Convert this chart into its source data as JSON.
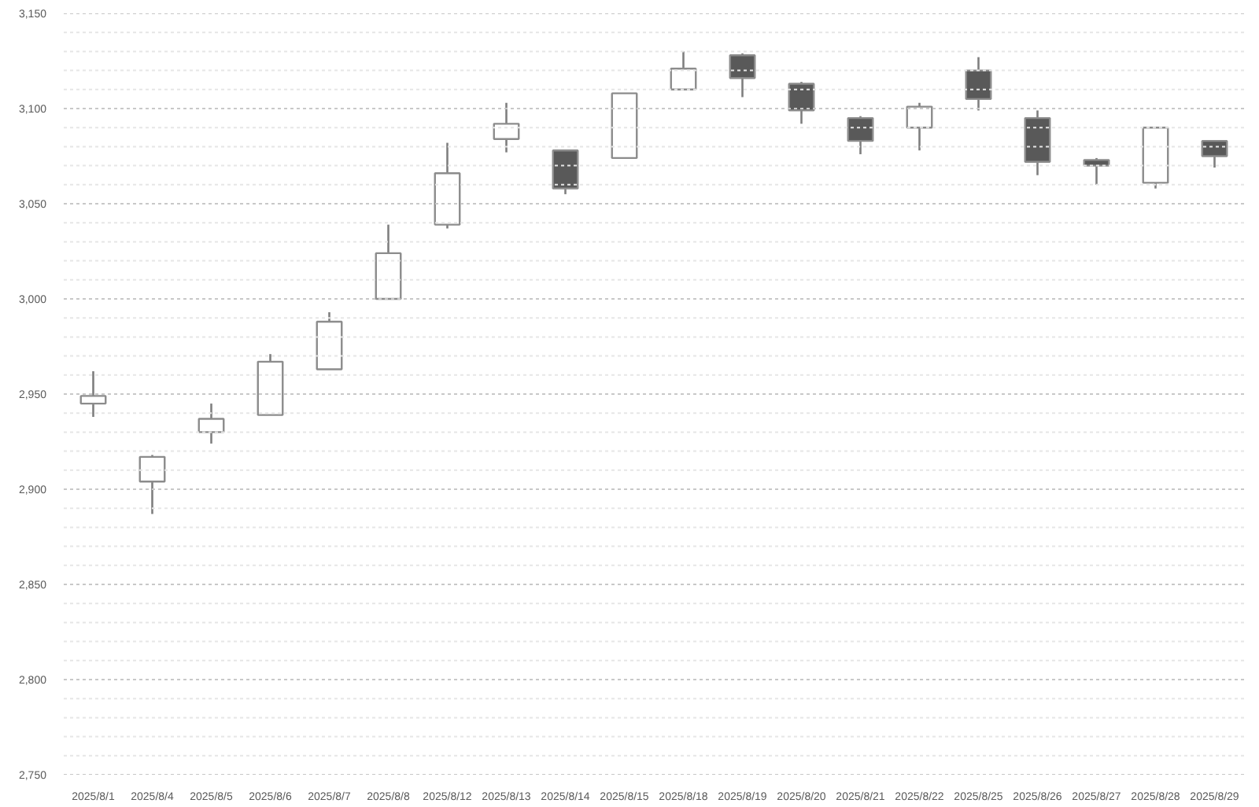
{
  "chart_data": {
    "type": "candlestick",
    "categories": [
      "2025/8/1",
      "2025/8/4",
      "2025/8/5",
      "2025/8/6",
      "2025/8/7",
      "2025/8/8",
      "2025/8/12",
      "2025/8/13",
      "2025/8/14",
      "2025/8/15",
      "2025/8/18",
      "2025/8/19",
      "2025/8/20",
      "2025/8/21",
      "2025/8/22",
      "2025/8/25",
      "2025/8/26",
      "2025/8/27",
      "2025/8/28",
      "2025/8/29"
    ],
    "ohlc": [
      [
        2945,
        2962,
        2938,
        2949
      ],
      [
        2904,
        2918,
        2887,
        2917
      ],
      [
        2930,
        2945,
        2924,
        2937
      ],
      [
        2939,
        2971,
        2939,
        2967
      ],
      [
        2963,
        2993,
        2963,
        2988
      ],
      [
        3000,
        3039,
        3000,
        3024
      ],
      [
        3039,
        3082,
        3037,
        3066
      ],
      [
        3084,
        3103,
        3077,
        3092
      ],
      [
        3078,
        3078,
        3055,
        3058
      ],
      [
        3074,
        3108,
        3074,
        3108
      ],
      [
        3110,
        3130,
        3110,
        3121
      ],
      [
        3128,
        3129,
        3106,
        3116
      ],
      [
        3113,
        3114,
        3092,
        3099
      ],
      [
        3095,
        3096,
        3076,
        3083
      ],
      [
        3090,
        3103,
        3078,
        3101
      ],
      [
        3120,
        3127,
        3099,
        3105
      ],
      [
        3095,
        3099,
        3065,
        3072
      ],
      [
        3073,
        3074,
        3060,
        3070
      ],
      [
        3061,
        3090,
        3058,
        3090
      ],
      [
        3083,
        3083,
        3069,
        3075
      ]
    ],
    "colors": [
      "#ffffff",
      "#ffffff",
      "#ffffff",
      "#ffffff",
      "#ffffff",
      "#ffffff",
      "#ffffff",
      "#ffffff",
      "#595959",
      "#ffffff",
      "#ffffff",
      "#595959",
      "#595959",
      "#595959",
      "#ffffff",
      "#595959",
      "#595959",
      "#595959",
      "#ffffff",
      "#595959"
    ],
    "ylim": [
      2750,
      3150
    ],
    "yticks": [
      {
        "value": 2750,
        "label": "2,750"
      },
      {
        "value": 2760,
        "label": null
      },
      {
        "value": 2770,
        "label": null
      },
      {
        "value": 2780,
        "label": null
      },
      {
        "value": 2790,
        "label": null
      },
      {
        "value": 2800,
        "label": "2,800"
      },
      {
        "value": 2810,
        "label": null
      },
      {
        "value": 2820,
        "label": null
      },
      {
        "value": 2830,
        "label": null
      },
      {
        "value": 2840,
        "label": null
      },
      {
        "value": 2850,
        "label": "2,850"
      },
      {
        "value": 2860,
        "label": null
      },
      {
        "value": 2870,
        "label": null
      },
      {
        "value": 2880,
        "label": null
      },
      {
        "value": 2890,
        "label": null
      },
      {
        "value": 2900,
        "label": "2,900"
      },
      {
        "value": 2910,
        "label": null
      },
      {
        "value": 2920,
        "label": null
      },
      {
        "value": 2930,
        "label": null
      },
      {
        "value": 2940,
        "label": null
      },
      {
        "value": 2950,
        "label": "2,950"
      },
      {
        "value": 2960,
        "label": null
      },
      {
        "value": 2970,
        "label": null
      },
      {
        "value": 2980,
        "label": null
      },
      {
        "value": 2990,
        "label": null
      },
      {
        "value": 3000,
        "label": "3,000"
      },
      {
        "value": 3010,
        "label": null
      },
      {
        "value": 3020,
        "label": null
      },
      {
        "value": 3030,
        "label": null
      },
      {
        "value": 3040,
        "label": null
      },
      {
        "value": 3050,
        "label": "3,050"
      },
      {
        "value": 3060,
        "label": null
      },
      {
        "value": 3070,
        "label": null
      },
      {
        "value": 3080,
        "label": null
      },
      {
        "value": 3090,
        "label": null
      },
      {
        "value": 3100,
        "label": "3,100"
      },
      {
        "value": 3110,
        "label": null
      },
      {
        "value": 3120,
        "label": null
      },
      {
        "value": 3130,
        "label": null
      },
      {
        "value": 3140,
        "label": null
      },
      {
        "value": 3150,
        "label": "3,150"
      }
    ],
    "grid": "y"
  }
}
